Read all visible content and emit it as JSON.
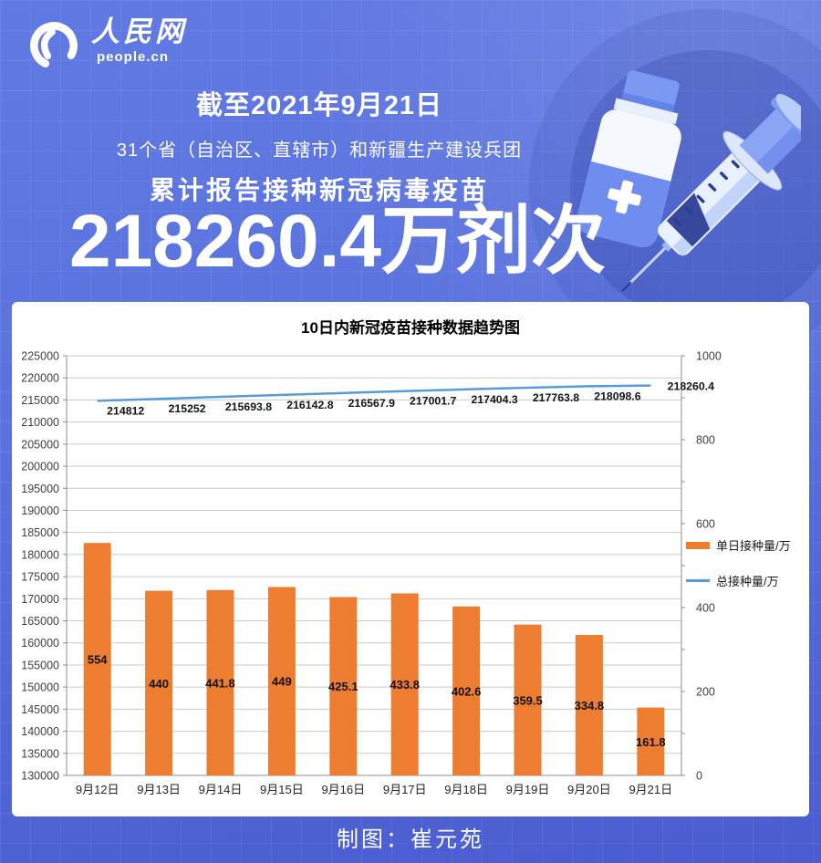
{
  "logo": {
    "cn": "人民网",
    "en": "people.cn"
  },
  "header": {
    "date_line": "截至2021年9月21日",
    "scope_line": "31个省（自治区、直辖市）和新疆生产建设兵团",
    "subject_line": "累计报告接种新冠病毒疫苗",
    "headline_number": "218260.4万剂次"
  },
  "chart_data": {
    "type": "combo",
    "title": "10日内新冠疫苗接种数据趋势图",
    "categories": [
      "9月12日",
      "9月13日",
      "9月14日",
      "9月15日",
      "9月16日",
      "9月17日",
      "9月18日",
      "9月19日",
      "9月20日",
      "9月21日"
    ],
    "series": [
      {
        "name": "单日接种量/万",
        "type": "bar",
        "axis": "right",
        "color": "#ED7D31",
        "values": [
          554,
          440,
          441.8,
          449,
          425.1,
          433.8,
          402.6,
          359.5,
          334.8,
          161.8
        ]
      },
      {
        "name": "总接种量/万",
        "type": "line",
        "axis": "left",
        "color": "#5B9BD5",
        "values": [
          214812,
          215252,
          215693.8,
          216142.8,
          216567.9,
          217001.7,
          217404.3,
          217763.8,
          218098.6,
          218260.4
        ]
      }
    ],
    "left_axis": {
      "min": 130000,
      "max": 225000,
      "step": 5000
    },
    "right_axis": {
      "min": 0,
      "max": 1000,
      "step": 200,
      "minor_step": 100
    },
    "legend_position": "right",
    "grid": true
  },
  "footer": {
    "credit": "制图：崔元苑"
  },
  "colors": {
    "bar": "#ED7D31",
    "line": "#5B9BD5",
    "background_top": "#6179e2",
    "background_bottom": "#4a5cd0",
    "panel": "#ffffff",
    "text_on_blue": "#ffffff"
  }
}
